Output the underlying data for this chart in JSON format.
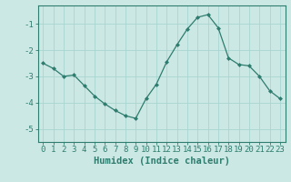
{
  "x": [
    0,
    1,
    2,
    3,
    4,
    5,
    6,
    7,
    8,
    9,
    10,
    11,
    12,
    13,
    14,
    15,
    16,
    17,
    18,
    19,
    20,
    21,
    22,
    23
  ],
  "y": [
    -2.5,
    -2.7,
    -3.0,
    -2.95,
    -3.35,
    -3.75,
    -4.05,
    -4.3,
    -4.5,
    -4.6,
    -3.85,
    -3.3,
    -2.45,
    -1.8,
    -1.2,
    -0.75,
    -0.65,
    -1.15,
    -2.3,
    -2.55,
    -2.6,
    -3.0,
    -3.55,
    -3.85
  ],
  "line_color": "#2e7d6e",
  "marker": "D",
  "marker_size": 2.0,
  "bg_color": "#cce8e5",
  "grid_color": "#a8d5d0",
  "axis_color": "#2e7d6e",
  "xlabel": "Humidex (Indice chaleur)",
  "xlabel_fontsize": 7.5,
  "tick_fontsize": 6.5,
  "ylim": [
    -5.5,
    -0.3
  ],
  "yticks": [
    -5,
    -4,
    -3,
    -2,
    -1
  ],
  "xticks": [
    0,
    1,
    2,
    3,
    4,
    5,
    6,
    7,
    8,
    9,
    10,
    11,
    12,
    13,
    14,
    15,
    16,
    17,
    18,
    19,
    20,
    21,
    22,
    23
  ]
}
